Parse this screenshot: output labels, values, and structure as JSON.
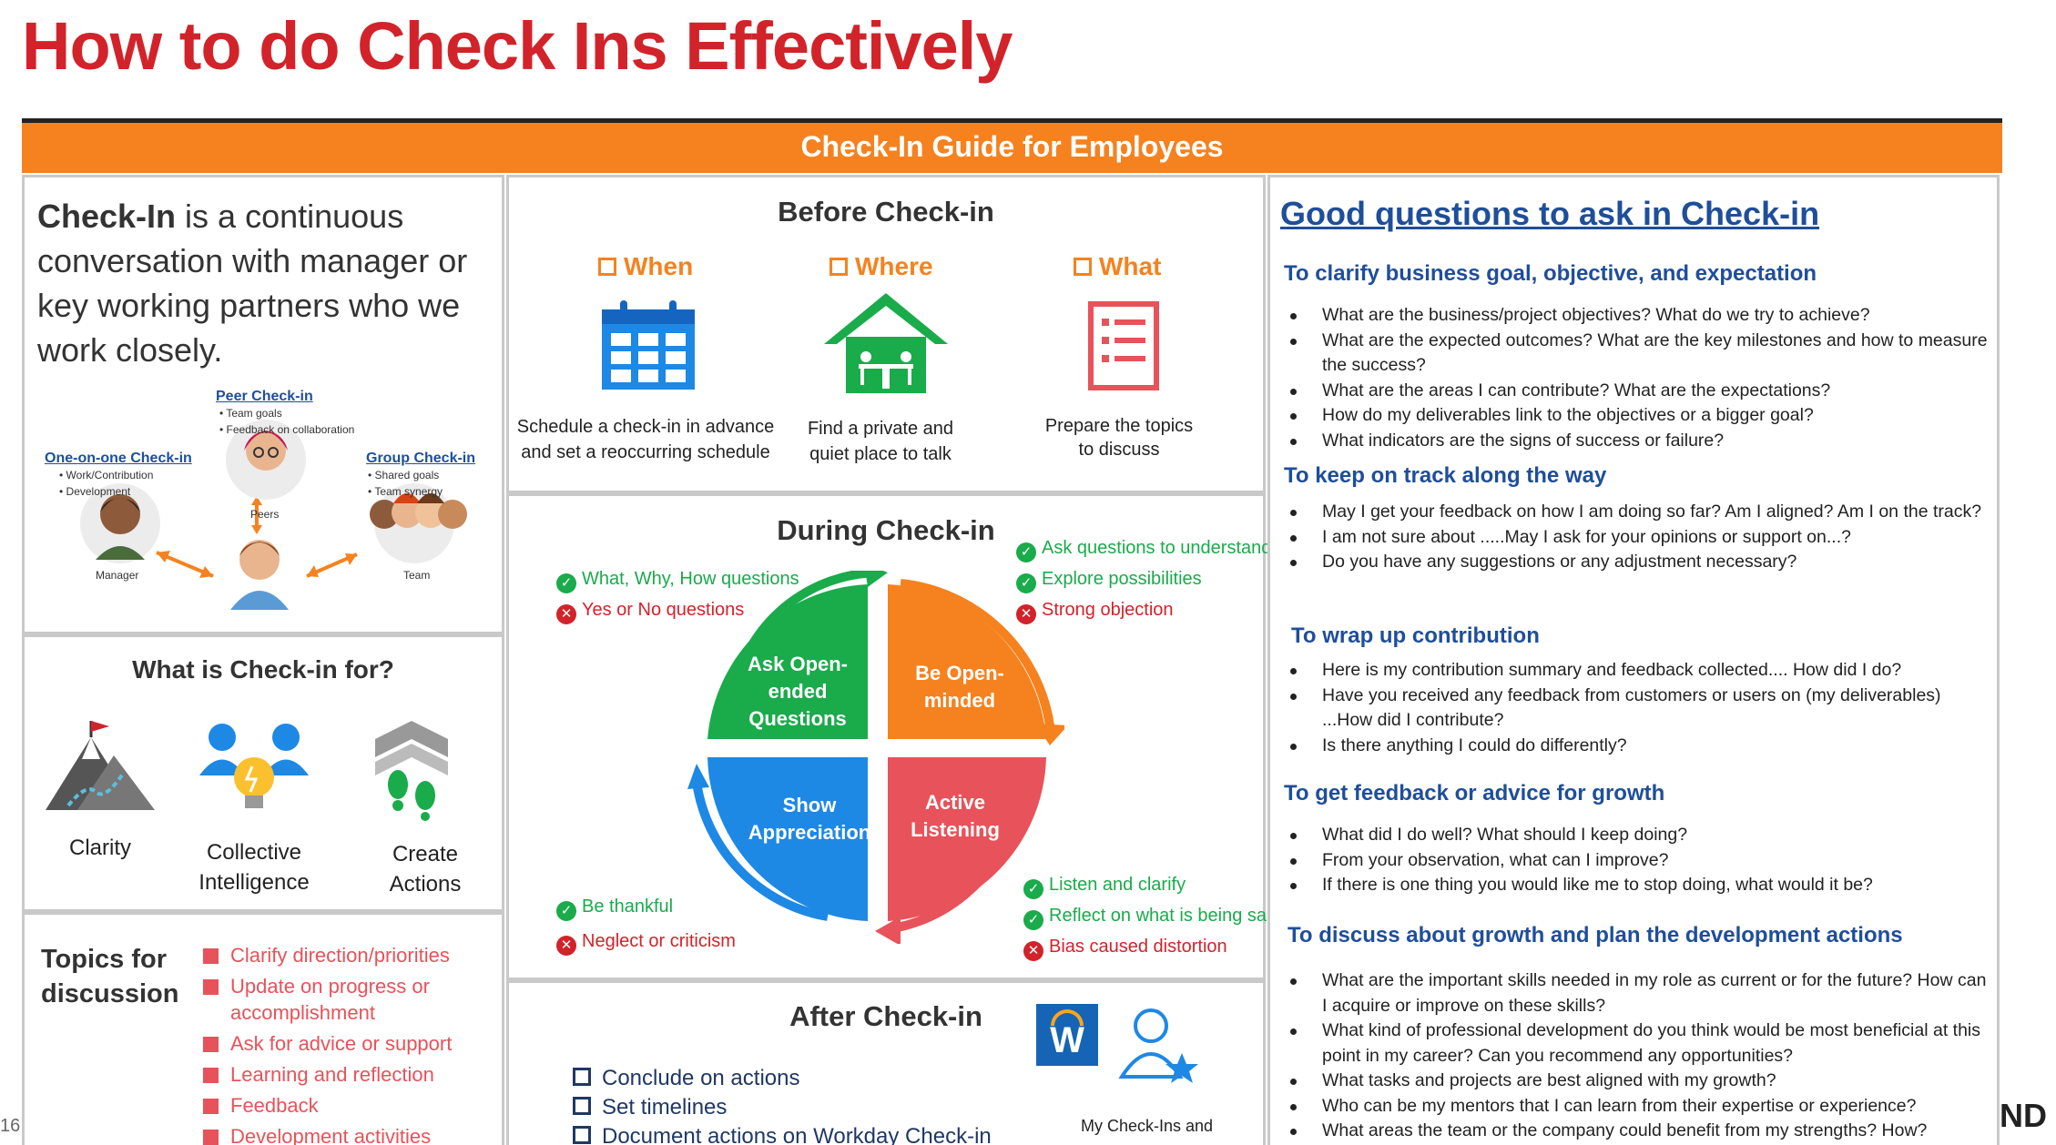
{
  "title": "How to do Check Ins Effectively",
  "banner": "Check-In Guide for Employees",
  "definition": {
    "bold": "Check-In",
    "rest": " is a continuous conversation with manager or key working partners who we work closely."
  },
  "network": {
    "peer": {
      "title": "Peer Check-in",
      "items": [
        "Team goals",
        "Feedback on collaboration"
      ],
      "label": "Peers"
    },
    "one_on_one": {
      "title": "One-on-one Check-in",
      "items": [
        "Work/Contribution",
        "Development"
      ],
      "label": "Manager"
    },
    "group": {
      "title": "Group Check-in",
      "items": [
        "Shared goals",
        "Team synergy"
      ],
      "label": "Team"
    }
  },
  "purpose": {
    "title": "What is Check-in for?",
    "items": [
      "Clarity",
      "Collective Intelligence",
      "Create Actions"
    ]
  },
  "topics": {
    "title": "Topics for discussion",
    "items": [
      "Clarify direction/priorities",
      "Update on progress or accomplishment",
      "Ask for advice or support",
      "Learning and reflection",
      "Feedback",
      "Development activities"
    ]
  },
  "before": {
    "title": "Before Check-in",
    "cols": [
      {
        "head": "When",
        "text": "Schedule a check-in in advance and set a reoccurring schedule"
      },
      {
        "head": "Where",
        "text": "Find a private and quiet place to talk"
      },
      {
        "head": "What",
        "text": "Prepare the topics to discuss"
      }
    ]
  },
  "during": {
    "title": "During Check-in",
    "quadrants": [
      "Ask Open-ended Questions",
      "Be Open-minded",
      "Show Appreciation",
      "Active Listening"
    ],
    "tl": [
      {
        "t": "What, Why, How questions",
        "ok": true
      },
      {
        "t": "Yes or No questions",
        "ok": false
      }
    ],
    "tr": [
      {
        "t": "Ask questions to understand",
        "ok": true
      },
      {
        "t": "Explore possibilities",
        "ok": true
      },
      {
        "t": "Strong objection",
        "ok": false
      }
    ],
    "bl": [
      {
        "t": "Be thankful",
        "ok": true
      },
      {
        "t": "Neglect or criticism",
        "ok": false
      }
    ],
    "br": [
      {
        "t": "Listen and clarify",
        "ok": true
      },
      {
        "t": "Reflect on what is being said",
        "ok": true
      },
      {
        "t": "Bias caused distortion",
        "ok": false
      }
    ]
  },
  "after": {
    "title": "After Check-in",
    "items": [
      "Conclude on actions",
      "Set timelines",
      "Document actions on Workday Check-in"
    ],
    "workday_letter": "W",
    "caption": "My Check-Ins and"
  },
  "questions": {
    "title": "Good questions to ask in Check-in",
    "sections": [
      {
        "head": "To clarify business goal, objective, and expectation",
        "items": [
          "What are the business/project objectives? What do we try to achieve?",
          "What are the expected outcomes? What are the key milestones and how to measure the success?",
          "What are the areas I can contribute? What are the expectations?",
          "How do my deliverables link to the objectives or a bigger goal?",
          "What indicators are the signs of success or failure?"
        ]
      },
      {
        "head": "To keep on track along the way",
        "items": [
          "May I get your feedback on how I am doing so far? Am I aligned? Am I on the track?",
          "I am not sure about .....May I ask for your opinions or support on...?",
          "Do you have any suggestions or any adjustment necessary?"
        ]
      },
      {
        "head": "To wrap up contribution",
        "items": [
          "Here is my contribution summary and feedback collected.... How did I do?",
          "Have you received any feedback from customers or users on (my deliverables) ...How did I contribute?",
          "Is there anything I could do differently?"
        ]
      },
      {
        "head": "To get feedback or advice for growth",
        "items": [
          "What did I do well? What should I keep doing?",
          "From your observation, what can I improve?",
          "If there is one thing you would like me to stop doing, what would it be?"
        ]
      },
      {
        "head": "To discuss about growth and plan the development actions",
        "items": [
          "What are the important skills needed in my role as current or for the future? How can I acquire or improve on these skills?",
          "What kind of professional development do you think would be most beneficial at this point in my career? Can you recommend any opportunities?",
          "What tasks and projects are best aligned with my growth?",
          "Who can be my mentors that I can learn from their expertise or experience?",
          "What areas the team or the company could benefit from my strengths? How?"
        ]
      }
    ]
  },
  "slide_number": "16",
  "corner_logo": "ND"
}
